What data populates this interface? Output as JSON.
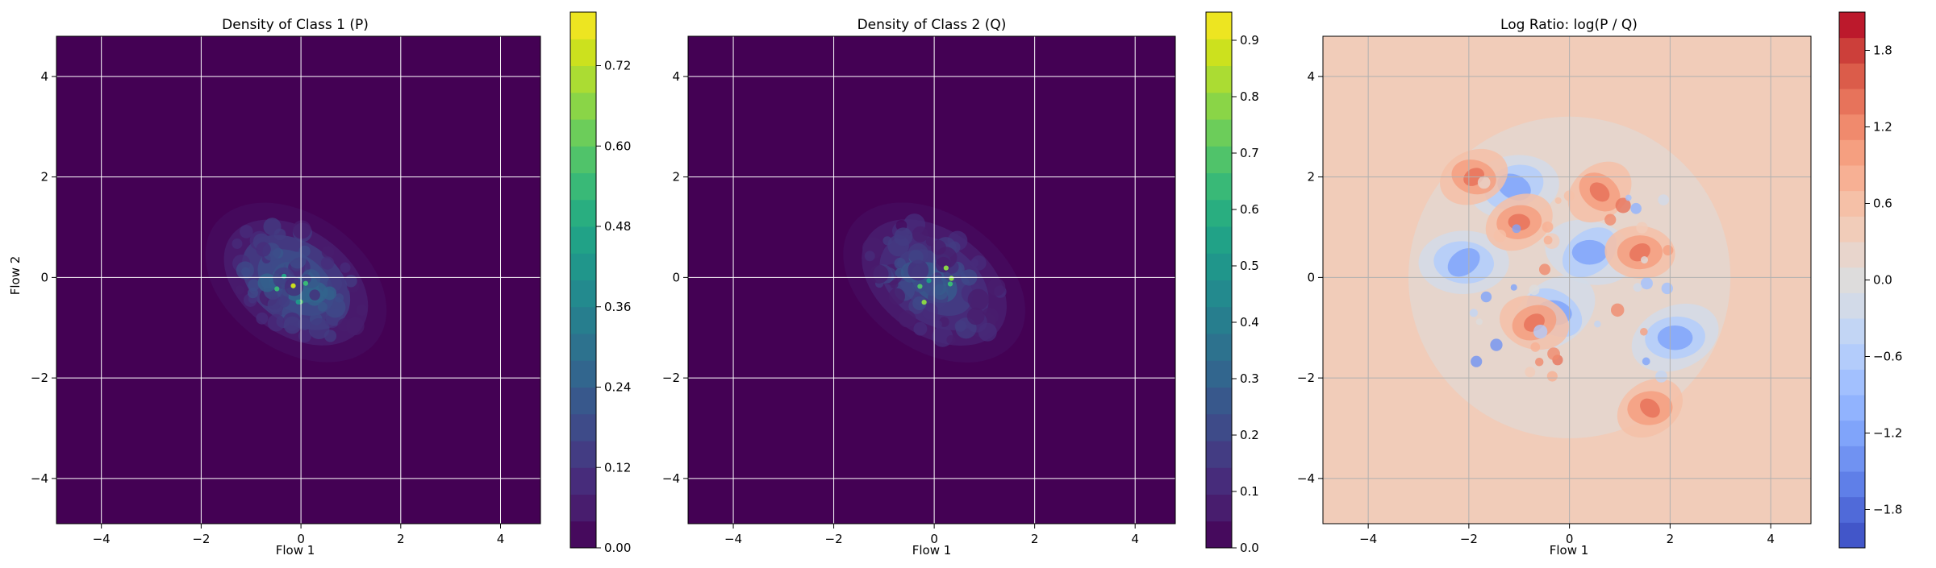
{
  "chart_data": [
    {
      "type": "heatmap",
      "title": "Density of Class 1 (P)",
      "xlabel": "Flow 1",
      "ylabel": "Flow 2",
      "xlim": [
        -4.9,
        4.8
      ],
      "ylim": [
        -4.9,
        4.8
      ],
      "x_ticks": [
        -4,
        -2,
        0,
        2,
        4
      ],
      "y_ticks": [
        -4,
        -2,
        0,
        2,
        4
      ],
      "x_tick_labels": [
        "−4",
        "−2",
        "0",
        "2",
        "4"
      ],
      "y_tick_labels": [
        "−4",
        "−2",
        "0",
        "2",
        "4"
      ],
      "grid": true,
      "grid_color": "#ffffff",
      "colormap": "viridis",
      "colorbar": {
        "min": 0.0,
        "max": 0.8,
        "levels": 20,
        "ticks": [
          0.0,
          0.12,
          0.24,
          0.36,
          0.48,
          0.6,
          0.72
        ],
        "tick_labels": [
          "0.00",
          "0.12",
          "0.24",
          "0.36",
          "0.48",
          "0.60",
          "0.72"
        ]
      },
      "density_center": [
        -0.1,
        -0.1
      ],
      "density_peak": 0.76,
      "density_orientation": "diagonal, upper-left to lower-right"
    },
    {
      "type": "heatmap",
      "title": "Density of Class 2 (Q)",
      "xlabel": "Flow 1",
      "ylabel": "",
      "xlim": [
        -4.9,
        4.8
      ],
      "ylim": [
        -4.9,
        4.8
      ],
      "x_ticks": [
        -4,
        -2,
        0,
        2,
        4
      ],
      "y_ticks": [
        -4,
        -2,
        0,
        2,
        4
      ],
      "x_tick_labels": [
        "−4",
        "−2",
        "0",
        "2",
        "4"
      ],
      "y_tick_labels": [
        "−4",
        "−2",
        "0",
        "2",
        "4"
      ],
      "grid": true,
      "grid_color": "#ffffff",
      "colormap": "viridis",
      "colorbar": {
        "min": 0.0,
        "max": 0.95,
        "levels": 20,
        "ticks": [
          0.0,
          0.1,
          0.2,
          0.3,
          0.4,
          0.5,
          0.6,
          0.7,
          0.8,
          0.9
        ],
        "tick_labels": [
          "0.0",
          "0.1",
          "0.2",
          "0.3",
          "0.4",
          "0.5",
          "0.6",
          "0.7",
          "0.8",
          "0.9"
        ]
      },
      "density_center": [
        0.0,
        -0.1
      ],
      "density_peak": 0.9,
      "density_orientation": "diagonal, upper-left to lower-right"
    },
    {
      "type": "heatmap",
      "title": "Log Ratio: log(P / Q)",
      "xlabel": "Flow 1",
      "ylabel": "",
      "xlim": [
        -4.9,
        4.8
      ],
      "ylim": [
        -4.9,
        4.8
      ],
      "x_ticks": [
        -4,
        -2,
        0,
        2,
        4
      ],
      "y_ticks": [
        -4,
        -2,
        0,
        2,
        4
      ],
      "x_tick_labels": [
        "−4",
        "−2",
        "0",
        "2",
        "4"
      ],
      "y_tick_labels": [
        "−4",
        "−2",
        "0",
        "2",
        "4"
      ],
      "grid": true,
      "grid_color": "#b0b0b0",
      "colormap": "coolwarm",
      "colorbar": {
        "min": -2.1,
        "max": 2.1,
        "levels": 21,
        "ticks": [
          -1.8,
          -1.2,
          -0.6,
          0.0,
          0.6,
          1.2,
          1.8
        ],
        "tick_labels": [
          "−1.8",
          "−1.2",
          "−0.6",
          "0.0",
          "0.6",
          "1.2",
          "1.8"
        ]
      },
      "background_value": 0.3,
      "positive_regions": [
        {
          "x": -1.9,
          "y": 2.0
        },
        {
          "x": 1.4,
          "y": 0.5
        },
        {
          "x": 0.6,
          "y": 1.7
        },
        {
          "x": 1.6,
          "y": -2.6
        },
        {
          "x": -1.0,
          "y": 1.1
        },
        {
          "x": -0.7,
          "y": -0.9
        }
      ],
      "negative_regions": [
        {
          "x": -2.1,
          "y": 0.3
        },
        {
          "x": 2.1,
          "y": -1.2
        },
        {
          "x": -0.3,
          "y": -0.7
        },
        {
          "x": -1.1,
          "y": 1.8
        },
        {
          "x": 0.4,
          "y": 0.5
        }
      ]
    }
  ]
}
